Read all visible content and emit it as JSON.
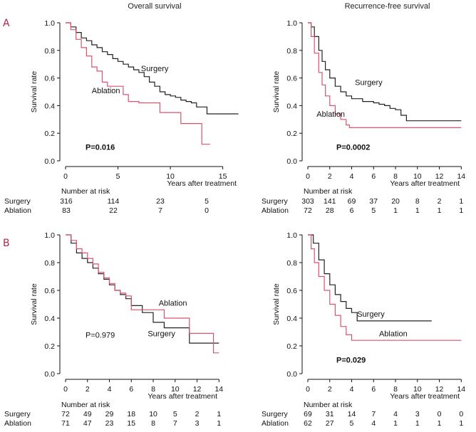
{
  "panel_letters": [
    "A",
    "B"
  ],
  "colors": {
    "surgery": "#222222",
    "ablation": "#d9546e",
    "letters": "#b3264a"
  },
  "chart_data": [
    {
      "type": "line",
      "title": "Overall survival",
      "xlabel": "Years after treatment",
      "ylabel": "Survival rate",
      "xlim": [
        0,
        17
      ],
      "ylim": [
        0,
        1.0
      ],
      "xticks": [
        0,
        5,
        10,
        15
      ],
      "yticks": [
        0.0,
        0.2,
        0.4,
        0.6,
        0.8,
        1.0
      ],
      "p_value": "P=0.016",
      "p_bold": true,
      "series": [
        {
          "name": "Surgery",
          "label_at": [
            7.2,
            0.65
          ],
          "points": [
            [
              0,
              1.0
            ],
            [
              0.5,
              0.97
            ],
            [
              1,
              0.93
            ],
            [
              1.5,
              0.89
            ],
            [
              2,
              0.87
            ],
            [
              2.5,
              0.84
            ],
            [
              3,
              0.82
            ],
            [
              3.5,
              0.79
            ],
            [
              4,
              0.77
            ],
            [
              4.5,
              0.74
            ],
            [
              5,
              0.72
            ],
            [
              5.5,
              0.7
            ],
            [
              6,
              0.68
            ],
            [
              6.5,
              0.66
            ],
            [
              7,
              0.64
            ],
            [
              7.5,
              0.61
            ],
            [
              8,
              0.57
            ],
            [
              8.5,
              0.54
            ],
            [
              9,
              0.5
            ],
            [
              9.5,
              0.48
            ],
            [
              10,
              0.47
            ],
            [
              10.5,
              0.46
            ],
            [
              11,
              0.44
            ],
            [
              11.5,
              0.43
            ],
            [
              12,
              0.42
            ],
            [
              12.5,
              0.39
            ],
            [
              13,
              0.39
            ],
            [
              13.5,
              0.34
            ],
            [
              14,
              0.34
            ],
            [
              16.5,
              0.34
            ]
          ]
        },
        {
          "name": "Ablation",
          "label_at": [
            2.5,
            0.49
          ],
          "points": [
            [
              0,
              1.0
            ],
            [
              0.5,
              0.95
            ],
            [
              1,
              0.88
            ],
            [
              1.5,
              0.82
            ],
            [
              2,
              0.76
            ],
            [
              2.5,
              0.68
            ],
            [
              3,
              0.65
            ],
            [
              3.5,
              0.57
            ],
            [
              4,
              0.54
            ],
            [
              5,
              0.54
            ],
            [
              5.5,
              0.48
            ],
            [
              6,
              0.43
            ],
            [
              7,
              0.42
            ],
            [
              8,
              0.42
            ],
            [
              9,
              0.35
            ],
            [
              11,
              0.35
            ],
            [
              11,
              0.27
            ],
            [
              12,
              0.27
            ],
            [
              13,
              0.27
            ],
            [
              13,
              0.12
            ],
            [
              13.8,
              0.12
            ]
          ]
        }
      ],
      "risk_table": {
        "header": "Number at risk",
        "rows": [
          {
            "label": "Surgery",
            "values": [
              "316",
              "114",
              "23",
              "5"
            ]
          },
          {
            "label": "Ablation",
            "values": [
              "83",
              "22",
              "7",
              "0"
            ]
          }
        ]
      }
    },
    {
      "type": "line",
      "title": "Recurrence-free survival",
      "xlabel": "Years after treatment",
      "ylabel": "Survival rate",
      "xlim": [
        0,
        14.5
      ],
      "ylim": [
        0,
        1.0
      ],
      "xticks": [
        0,
        2,
        4,
        6,
        8,
        10,
        12,
        14
      ],
      "yticks": [
        0.0,
        0.2,
        0.4,
        0.6,
        0.8,
        1.0
      ],
      "p_value": "P=0.0002",
      "p_bold": true,
      "series": [
        {
          "name": "Surgery",
          "label_at": [
            4.3,
            0.55
          ],
          "points": [
            [
              0,
              1.0
            ],
            [
              0.3,
              0.97
            ],
            [
              0.6,
              0.9
            ],
            [
              1,
              0.8
            ],
            [
              1.3,
              0.72
            ],
            [
              1.6,
              0.66
            ],
            [
              2,
              0.6
            ],
            [
              2.5,
              0.54
            ],
            [
              3,
              0.5
            ],
            [
              3.5,
              0.47
            ],
            [
              4,
              0.45
            ],
            [
              5,
              0.43
            ],
            [
              6,
              0.42
            ],
            [
              6.5,
              0.41
            ],
            [
              7,
              0.4
            ],
            [
              7.5,
              0.38
            ],
            [
              8,
              0.37
            ],
            [
              8.5,
              0.33
            ],
            [
              9,
              0.29
            ],
            [
              14,
              0.29
            ]
          ]
        },
        {
          "name": "Ablation",
          "label_at": [
            0.8,
            0.32
          ],
          "points": [
            [
              0,
              1.0
            ],
            [
              0.3,
              0.9
            ],
            [
              0.6,
              0.78
            ],
            [
              1,
              0.64
            ],
            [
              1.3,
              0.55
            ],
            [
              1.6,
              0.47
            ],
            [
              2,
              0.4
            ],
            [
              2.5,
              0.34
            ],
            [
              3,
              0.3
            ],
            [
              3.5,
              0.26
            ],
            [
              3.8,
              0.24
            ],
            [
              14,
              0.24
            ]
          ]
        }
      ],
      "risk_table": {
        "header": "Number at risk",
        "rows": [
          {
            "label": "Surgery",
            "values": [
              "303",
              "141",
              "69",
              "37",
              "20",
              "8",
              "2",
              "1"
            ]
          },
          {
            "label": "Ablation",
            "values": [
              "72",
              "28",
              "6",
              "5",
              "1",
              "1",
              "1",
              "1"
            ]
          }
        ]
      }
    },
    {
      "type": "line",
      "title": "",
      "xlabel": "Years after treatment",
      "ylabel": "Survival rate",
      "xlim": [
        0,
        14.5
      ],
      "ylim": [
        0,
        1.0
      ],
      "xticks": [
        0,
        2,
        4,
        6,
        8,
        10,
        12,
        14
      ],
      "yticks": [
        0.0,
        0.2,
        0.4,
        0.6,
        0.8,
        1.0
      ],
      "p_value": "P=0.979",
      "p_bold": false,
      "series": [
        {
          "name": "Surgery",
          "label_at": [
            7.5,
            0.27
          ],
          "points": [
            [
              0,
              1.0
            ],
            [
              0.5,
              0.94
            ],
            [
              1,
              0.87
            ],
            [
              1.5,
              0.83
            ],
            [
              2,
              0.8
            ],
            [
              2.5,
              0.76
            ],
            [
              3,
              0.72
            ],
            [
              3.5,
              0.68
            ],
            [
              4,
              0.64
            ],
            [
              4.5,
              0.6
            ],
            [
              5,
              0.57
            ],
            [
              5.5,
              0.54
            ],
            [
              6,
              0.49
            ],
            [
              7,
              0.44
            ],
            [
              8,
              0.37
            ],
            [
              9,
              0.33
            ],
            [
              10,
              0.33
            ],
            [
              11,
              0.33
            ],
            [
              11.3,
              0.22
            ],
            [
              14,
              0.22
            ]
          ]
        },
        {
          "name": "Ablation",
          "label_at": [
            8.5,
            0.49
          ],
          "points": [
            [
              0,
              1.0
            ],
            [
              0.5,
              0.96
            ],
            [
              1,
              0.9
            ],
            [
              1.5,
              0.87
            ],
            [
              2,
              0.83
            ],
            [
              2.5,
              0.79
            ],
            [
              3,
              0.73
            ],
            [
              3.5,
              0.69
            ],
            [
              4,
              0.65
            ],
            [
              4.5,
              0.6
            ],
            [
              5,
              0.58
            ],
            [
              5.5,
              0.56
            ],
            [
              6,
              0.46
            ],
            [
              9,
              0.46
            ],
            [
              9,
              0.4
            ],
            [
              10,
              0.4
            ],
            [
              10.5,
              0.4
            ],
            [
              11.3,
              0.29
            ],
            [
              13.3,
              0.29
            ],
            [
              13.5,
              0.15
            ],
            [
              14,
              0.15
            ]
          ]
        }
      ],
      "risk_table": {
        "header": "Number at risk",
        "rows": [
          {
            "label": "Surgery",
            "values": [
              "72",
              "49",
              "29",
              "18",
              "10",
              "5",
              "2",
              "1"
            ]
          },
          {
            "label": "Ablation",
            "values": [
              "71",
              "47",
              "23",
              "15",
              "8",
              "7",
              "3",
              "1"
            ]
          }
        ]
      }
    },
    {
      "type": "line",
      "title": "",
      "xlabel": "Years after treatment",
      "ylabel": "Survival rate",
      "xlim": [
        0,
        14.5
      ],
      "ylim": [
        0,
        1.0
      ],
      "xticks": [
        0,
        2,
        4,
        6,
        8,
        10,
        12,
        14
      ],
      "yticks": [
        0.0,
        0.2,
        0.4,
        0.6,
        0.8,
        1.0
      ],
      "p_value": "P=0.029",
      "p_bold": true,
      "series": [
        {
          "name": "Surgery",
          "label_at": [
            4.5,
            0.41
          ],
          "points": [
            [
              0,
              1.0
            ],
            [
              0.5,
              0.94
            ],
            [
              1,
              0.82
            ],
            [
              1.5,
              0.72
            ],
            [
              2,
              0.64
            ],
            [
              2.5,
              0.57
            ],
            [
              3,
              0.52
            ],
            [
              3.5,
              0.47
            ],
            [
              4,
              0.44
            ],
            [
              4.5,
              0.38
            ],
            [
              11.3,
              0.38
            ]
          ]
        },
        {
          "name": "Ablation",
          "label_at": [
            6.5,
            0.27
          ],
          "points": [
            [
              0,
              1.0
            ],
            [
              0.3,
              0.9
            ],
            [
              0.6,
              0.8
            ],
            [
              1,
              0.7
            ],
            [
              1.5,
              0.6
            ],
            [
              2,
              0.5
            ],
            [
              2.5,
              0.42
            ],
            [
              3,
              0.34
            ],
            [
              3.5,
              0.28
            ],
            [
              4,
              0.24
            ],
            [
              14,
              0.24
            ]
          ]
        }
      ],
      "risk_table": {
        "header": "Number at risk",
        "rows": [
          {
            "label": "Surgery",
            "values": [
              "69",
              "31",
              "14",
              "7",
              "4",
              "3",
              "0",
              "0"
            ]
          },
          {
            "label": "Ablation",
            "values": [
              "62",
              "27",
              "5",
              "4",
              "1",
              "1",
              "1",
              "1"
            ]
          }
        ]
      }
    }
  ]
}
